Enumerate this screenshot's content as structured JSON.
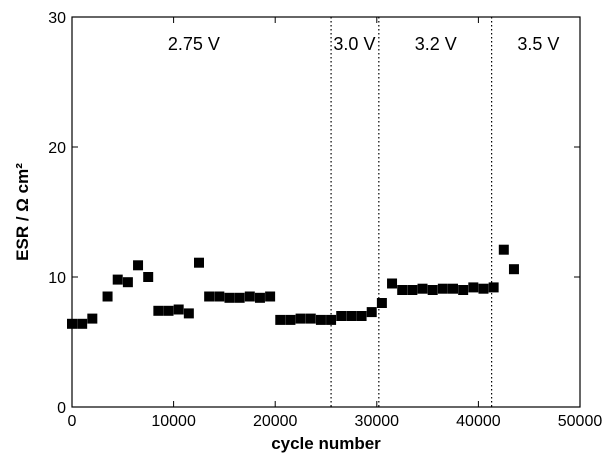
{
  "chart_data": {
    "type": "scatter",
    "xlabel": "cycle number",
    "ylabel": "ESR / Ω cm²",
    "xlim": [
      0,
      50000
    ],
    "ylim": [
      0,
      30
    ],
    "x_ticks": [
      0,
      10000,
      20000,
      30000,
      40000,
      50000
    ],
    "y_ticks": [
      0,
      10,
      20,
      30
    ],
    "x_tick_labels": [
      "0",
      "10000",
      "20000",
      "30000",
      "40000",
      "50000"
    ],
    "y_tick_labels": [
      "0",
      "10",
      "20",
      "30"
    ],
    "grid": false,
    "marker": "filled-square",
    "marker_color": "#000000",
    "region_boundaries": [
      25500,
      30200,
      41300
    ],
    "region_labels": [
      {
        "text": "2.75 V",
        "x": 12000
      },
      {
        "text": "3.0 V",
        "x": 27800
      },
      {
        "text": "3.2 V",
        "x": 35800
      },
      {
        "text": "3.5 V",
        "x": 45900
      }
    ],
    "series": [
      {
        "x": [
          0,
          1000,
          2000,
          3500,
          4500,
          5500,
          6500,
          7500,
          8500,
          9500,
          10500,
          11500,
          12500,
          13500,
          14500,
          15500,
          16500,
          17500,
          18500,
          19500,
          20500,
          21500,
          22500,
          23500,
          24500,
          25500,
          26500,
          27500,
          28500,
          29500,
          30500,
          31500,
          32500,
          33500,
          34500,
          35500,
          36500,
          37500,
          38500,
          39500,
          40500,
          41500,
          42500,
          43500
        ],
        "y": [
          6.4,
          6.4,
          6.8,
          8.5,
          9.8,
          9.6,
          10.9,
          10.0,
          7.4,
          7.4,
          7.5,
          7.2,
          11.1,
          8.5,
          8.5,
          8.4,
          8.4,
          8.5,
          8.4,
          8.5,
          6.7,
          6.7,
          6.8,
          6.8,
          6.7,
          6.7,
          7.0,
          7.0,
          7.0,
          7.3,
          8.0,
          9.5,
          9.0,
          9.0,
          9.1,
          9.0,
          9.1,
          9.1,
          9.0,
          9.2,
          9.1,
          9.2,
          12.1,
          10.6
        ]
      }
    ]
  }
}
